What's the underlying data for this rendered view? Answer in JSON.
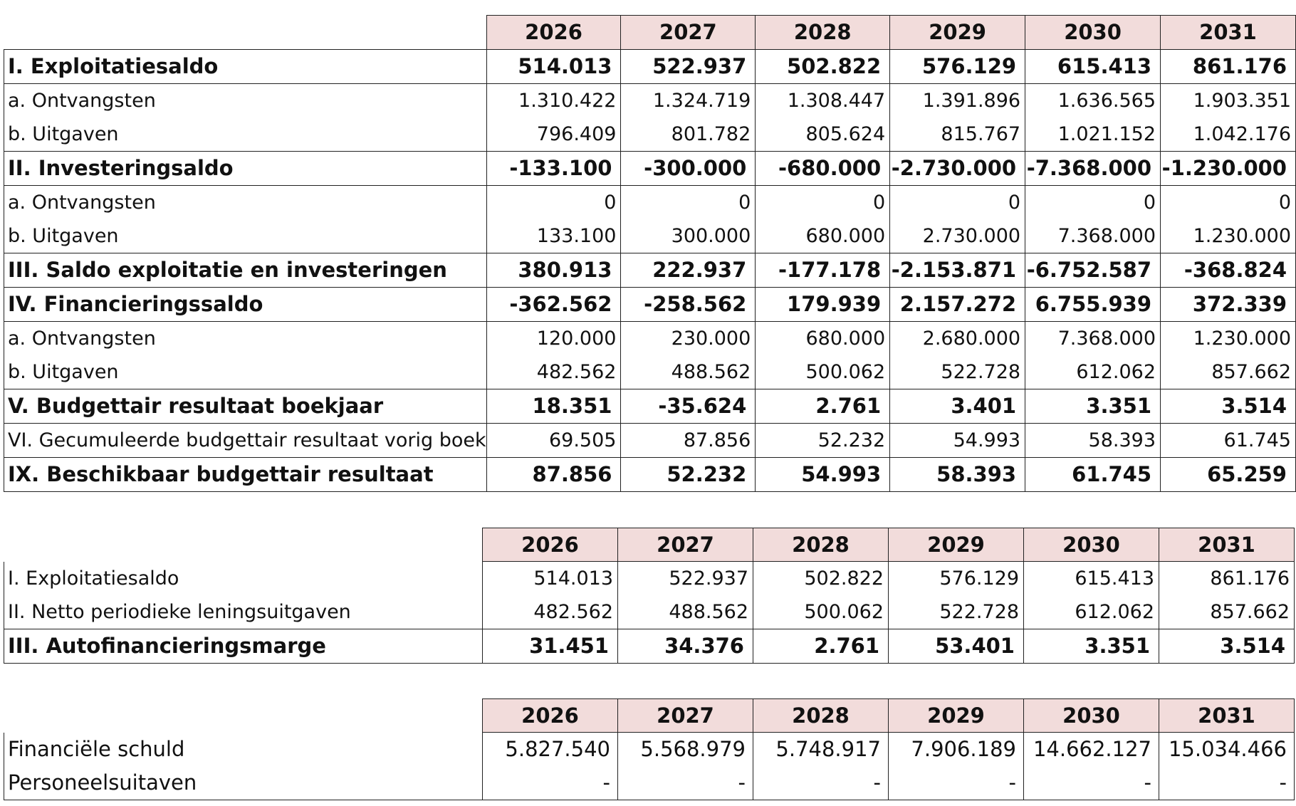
{
  "tables": [
    {
      "header": [
        "2026",
        "2027",
        "2028",
        "2029",
        "2030",
        "2031"
      ],
      "rows": [
        {
          "label": "I. Exploitatiesaldo",
          "bold": true,
          "values": [
            "514.013",
            "522.937",
            "502.822",
            "576.129",
            "615.413",
            "861.176"
          ]
        },
        {
          "label": "a. Ontvangsten",
          "bold": false,
          "values": [
            "1.310.422",
            "1.324.719",
            "1.308.447",
            "1.391.896",
            "1.636.565",
            "1.903.351"
          ]
        },
        {
          "label": "b. Uitgaven",
          "bold": false,
          "values": [
            "796.409",
            "801.782",
            "805.624",
            "815.767",
            "1.021.152",
            "1.042.176"
          ]
        },
        {
          "label": "II. Investeringsaldo",
          "bold": true,
          "values": [
            "-133.100",
            "-300.000",
            "-680.000",
            "-2.730.000",
            "-7.368.000",
            "-1.230.000"
          ]
        },
        {
          "label": "a. Ontvangsten",
          "bold": false,
          "values": [
            "0",
            "0",
            "0",
            "0",
            "0",
            "0"
          ]
        },
        {
          "label": "b. Uitgaven",
          "bold": false,
          "values": [
            "133.100",
            "300.000",
            "680.000",
            "2.730.000",
            "7.368.000",
            "1.230.000"
          ]
        },
        {
          "label": "III. Saldo exploitatie en investeringen",
          "bold": true,
          "values": [
            "380.913",
            "222.937",
            "-177.178",
            "-2.153.871",
            "-6.752.587",
            "-368.824"
          ]
        },
        {
          "label": "IV. Financieringssaldo",
          "bold": true,
          "values": [
            "-362.562",
            "-258.562",
            "179.939",
            "2.157.272",
            "6.755.939",
            "372.339"
          ]
        },
        {
          "label": "a. Ontvangsten",
          "bold": false,
          "values": [
            "120.000",
            "230.000",
            "680.000",
            "2.680.000",
            "7.368.000",
            "1.230.000"
          ]
        },
        {
          "label": "b. Uitgaven",
          "bold": false,
          "values": [
            "482.562",
            "488.562",
            "500.062",
            "522.728",
            "612.062",
            "857.662"
          ]
        },
        {
          "label": "V. Budgettair resultaat boekjaar",
          "bold": true,
          "values": [
            "18.351",
            "-35.624",
            "2.761",
            "3.401",
            "3.351",
            "3.514"
          ]
        },
        {
          "label": "VI. Gecumuleerde budgettair resultaat vorig boek",
          "bold": false,
          "values": [
            "69.505",
            "87.856",
            "52.232",
            "54.993",
            "58.393",
            "61.745"
          ]
        },
        {
          "label": "IX. Beschikbaar budgettair resultaat",
          "bold": true,
          "values": [
            "87.856",
            "52.232",
            "54.993",
            "58.393",
            "61.745",
            "65.259"
          ]
        }
      ]
    },
    {
      "header": [
        "2026",
        "2027",
        "2028",
        "2029",
        "2030",
        "2031"
      ],
      "rows": [
        {
          "label": "I. Exploitatiesaldo",
          "bold": false,
          "values": [
            "514.013",
            "522.937",
            "502.822",
            "576.129",
            "615.413",
            "861.176"
          ]
        },
        {
          "label": "II. Netto periodieke leningsuitgaven",
          "bold": false,
          "values": [
            "482.562",
            "488.562",
            "500.062",
            "522.728",
            "612.062",
            "857.662"
          ]
        },
        {
          "label": "III. Autofinancieringsmarge",
          "bold": true,
          "values": [
            "31.451",
            "34.376",
            "2.761",
            "53.401",
            "3.351",
            "3.514"
          ]
        }
      ]
    },
    {
      "header": [
        "2026",
        "2027",
        "2028",
        "2029",
        "2030",
        "2031"
      ],
      "rows": [
        {
          "label": "Financiële schuld",
          "bold": false,
          "big": true,
          "values": [
            "5.827.540",
            "5.568.979",
            "5.748.917",
            "7.906.189",
            "14.662.127",
            "15.034.466"
          ]
        },
        {
          "label": "Personeelsuitaven",
          "bold": false,
          "big": true,
          "values": [
            "-",
            "-",
            "-",
            "-",
            "-",
            "-"
          ]
        }
      ]
    }
  ]
}
